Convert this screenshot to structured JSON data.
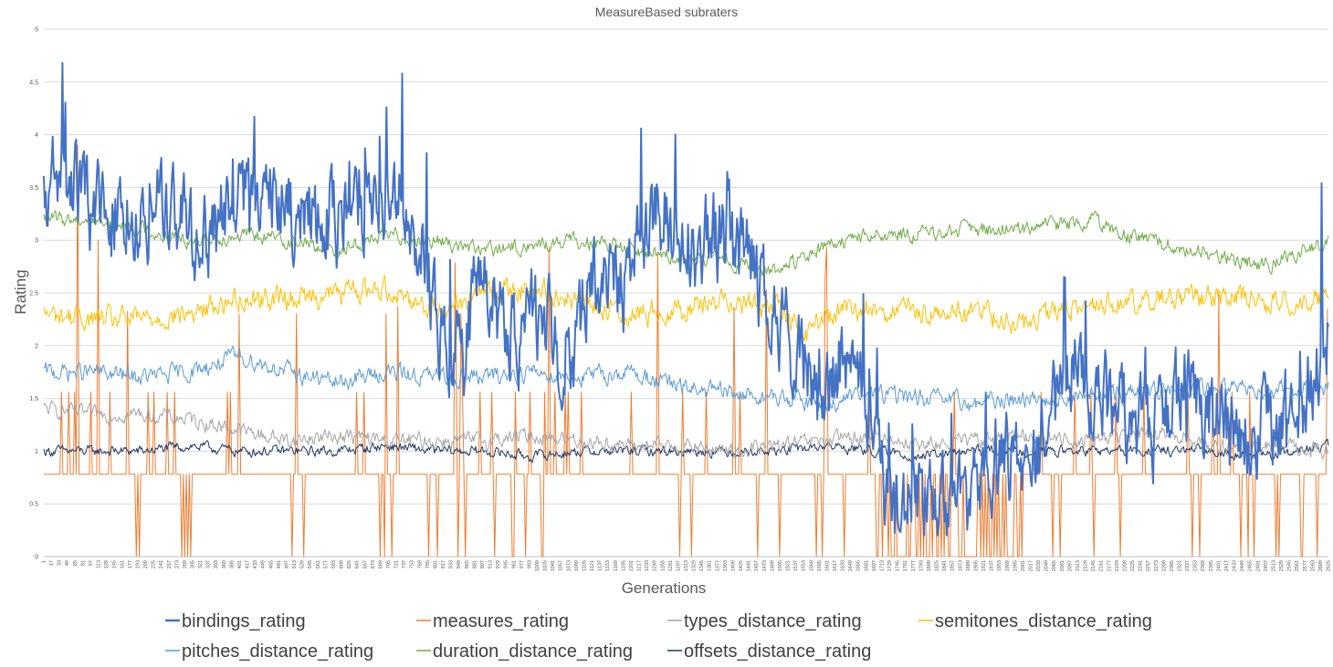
{
  "chart_data": {
    "type": "line",
    "title": "MeasureBased subraters",
    "xlabel": "Generations",
    "ylabel": "Rating",
    "ylim": [
      0,
      5
    ],
    "yticks": [
      "0",
      "0.5",
      "1",
      "1.5",
      "2",
      "2.5",
      "3",
      "3.5",
      "4",
      "4.5",
      "5"
    ],
    "xlim": [
      1,
      2625
    ],
    "xtick_step": 16,
    "grid": true,
    "legend_position": "bottom",
    "x_labels_note_source": "generation index",
    "series": [
      {
        "name": "bindings_rating",
        "color": "#4472C4",
        "x": [
          1,
          40,
          120,
          250,
          330,
          430,
          520,
          600,
          700,
          760,
          820,
          900,
          960,
          1020,
          1080,
          1120,
          1180,
          1240,
          1320,
          1400,
          1480,
          1540,
          1600,
          1660,
          1740,
          1800,
          1880,
          1960,
          2020,
          2100,
          2180,
          2260,
          2340,
          2420,
          2500,
          2560,
          2625
        ],
        "values": [
          3.3,
          3.6,
          3.2,
          3.3,
          3.0,
          3.5,
          3.2,
          3.2,
          3.6,
          3.1,
          2.0,
          2.5,
          2.1,
          2.3,
          1.6,
          2.8,
          2.5,
          3.3,
          3.0,
          3.0,
          2.5,
          1.8,
          1.6,
          1.8,
          0.3,
          0.6,
          0.4,
          1.0,
          0.9,
          1.8,
          1.4,
          1.2,
          1.7,
          1.1,
          1.2,
          1.2,
          2.2
        ],
        "spikes": [
          [
            38,
            4.68
          ],
          [
            733,
            4.58
          ],
          [
            430,
            4.17
          ],
          [
            700,
            4.26
          ],
          [
            1220,
            4.06
          ],
          [
            2610,
            3.54
          ]
        ]
      },
      {
        "name": "measures_rating",
        "color": "#ED7D31",
        "x": [
          1,
          200,
          400,
          600,
          800,
          1000,
          1200,
          1400,
          1600,
          1800,
          2000,
          2200,
          2400,
          2625
        ],
        "values": [
          0.78,
          0.78,
          0.78,
          0.78,
          0.78,
          0.78,
          0.78,
          0.78,
          0.78,
          0.78,
          0.78,
          0.78,
          0.78,
          0.78
        ],
        "spikes": [
          [
            70,
            3.9
          ],
          [
            110,
            3.0
          ],
          [
            400,
            2.3
          ],
          [
            700,
            2.3
          ]
        ],
        "levels": [
          0,
          0.78,
          1.56
        ]
      },
      {
        "name": "types_distance_rating",
        "color": "#A5A5A5",
        "x": [
          1,
          100,
          200,
          300,
          400,
          500,
          600,
          700,
          800,
          900,
          1000,
          1100,
          1200,
          1300,
          1400,
          1500,
          1600,
          1700,
          1800,
          1900,
          2000,
          2100,
          2200,
          2300,
          2400,
          2500,
          2625
        ],
        "values": [
          1.4,
          1.35,
          1.35,
          1.3,
          1.2,
          1.1,
          1.15,
          1.1,
          1.1,
          1.1,
          1.15,
          1.1,
          1.05,
          1.05,
          1.0,
          1.05,
          1.1,
          1.15,
          1.05,
          1.1,
          1.15,
          1.1,
          1.15,
          1.15,
          1.05,
          1.05,
          1.0
        ]
      },
      {
        "name": "semitones_distance_rating",
        "color": "#FFC000",
        "x": [
          1,
          100,
          200,
          300,
          400,
          500,
          600,
          700,
          800,
          900,
          1000,
          1100,
          1200,
          1300,
          1400,
          1500,
          1560,
          1600,
          1700,
          1800,
          1900,
          2000,
          2100,
          2200,
          2300,
          2400,
          2500,
          2625
        ],
        "values": [
          2.3,
          2.25,
          2.25,
          2.3,
          2.45,
          2.45,
          2.5,
          2.55,
          2.35,
          2.5,
          2.55,
          2.4,
          2.3,
          2.35,
          2.45,
          2.35,
          2.1,
          2.3,
          2.35,
          2.3,
          2.35,
          2.2,
          2.35,
          2.4,
          2.45,
          2.5,
          2.4,
          2.45
        ]
      },
      {
        "name": "pitches_distance_rating",
        "color": "#5B9BD5",
        "x": [
          1,
          100,
          200,
          300,
          400,
          500,
          600,
          700,
          800,
          900,
          1000,
          1100,
          1200,
          1300,
          1400,
          1500,
          1600,
          1700,
          1800,
          1900,
          2000,
          2100,
          2200,
          2300,
          2400,
          2500,
          2625
        ],
        "values": [
          1.75,
          1.75,
          1.7,
          1.75,
          1.9,
          1.75,
          1.65,
          1.75,
          1.7,
          1.7,
          1.75,
          1.7,
          1.75,
          1.6,
          1.55,
          1.5,
          1.45,
          1.55,
          1.5,
          1.45,
          1.5,
          1.5,
          1.55,
          1.55,
          1.6,
          1.6,
          1.6
        ]
      },
      {
        "name": "duration_distance_rating",
        "color": "#70AD47",
        "x": [
          1,
          100,
          200,
          300,
          400,
          500,
          600,
          700,
          800,
          900,
          1000,
          1100,
          1200,
          1300,
          1400,
          1500,
          1600,
          1700,
          1800,
          1900,
          2000,
          2100,
          2150,
          2200,
          2300,
          2400,
          2500,
          2625
        ],
        "values": [
          3.2,
          3.2,
          3.1,
          3.0,
          3.05,
          3.0,
          2.9,
          3.05,
          3.0,
          2.9,
          2.95,
          3.0,
          2.9,
          2.85,
          2.8,
          2.7,
          2.95,
          3.05,
          3.05,
          3.1,
          3.1,
          3.15,
          3.2,
          3.05,
          2.95,
          2.85,
          2.75,
          3.0
        ]
      },
      {
        "name": "offsets_distance_rating",
        "color": "#203864",
        "x": [
          1,
          100,
          200,
          300,
          400,
          500,
          600,
          700,
          800,
          900,
          1000,
          1100,
          1200,
          1300,
          1400,
          1500,
          1600,
          1700,
          1800,
          1900,
          2000,
          2100,
          2200,
          2300,
          2400,
          2500,
          2625
        ],
        "values": [
          1.0,
          1.0,
          1.0,
          1.05,
          1.0,
          1.0,
          1.0,
          1.05,
          1.0,
          1.0,
          0.95,
          1.0,
          1.0,
          1.0,
          1.0,
          1.0,
          1.05,
          1.0,
          0.95,
          1.0,
          1.0,
          1.0,
          1.0,
          1.0,
          1.0,
          0.95,
          1.05
        ]
      }
    ]
  }
}
